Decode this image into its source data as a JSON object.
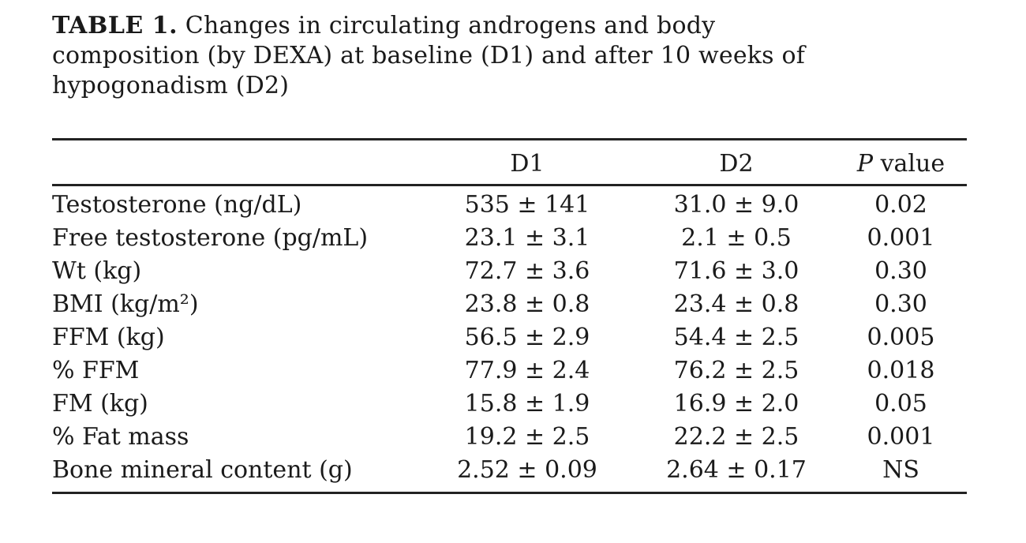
{
  "paper_table": {
    "title": {
      "label": "TABLE 1.",
      "line1": "Changes in circulating androgens and body",
      "line2": "composition (by DEXA) at baseline (D1) and after 10 weeks of",
      "line3": "hypogonadism (D2)"
    },
    "header": {
      "label_col": "",
      "d1": "D1",
      "d2": "D2",
      "p_italic": "P",
      "p_rest": " value"
    },
    "rows": [
      {
        "label": "Testosterone (ng/dL)",
        "d1": "535 ± 141",
        "d2": "31.0 ± 9.0",
        "p": "0.02"
      },
      {
        "label": "Free testosterone (pg/mL)",
        "d1": "23.1 ± 3.1",
        "d2": "2.1 ± 0.5",
        "p": "0.001"
      },
      {
        "label": "Wt (kg)",
        "d1": "72.7 ± 3.6",
        "d2": "71.6 ± 3.0",
        "p": "0.30"
      },
      {
        "label": "BMI (kg/m²)",
        "d1": "23.8 ± 0.8",
        "d2": "23.4 ± 0.8",
        "p": "0.30"
      },
      {
        "label": "FFM (kg)",
        "d1": "56.5 ± 2.9",
        "d2": "54.4 ± 2.5",
        "p": "0.005"
      },
      {
        "label": "% FFM",
        "d1": "77.9 ± 2.4",
        "d2": "76.2 ± 2.5",
        "p": "0.018"
      },
      {
        "label": "FM (kg)",
        "d1": "15.8 ± 1.9",
        "d2": "16.9 ± 2.0",
        "p": "0.05"
      },
      {
        "label": "% Fat mass",
        "d1": "19.2 ± 2.5",
        "d2": "22.2 ± 2.5",
        "p": "0.001"
      },
      {
        "label": "Bone mineral content (g)",
        "d1": "2.52 ± 0.09",
        "d2": "2.64 ± 0.17",
        "p": "NS"
      }
    ],
    "colors": {
      "background": "#ffffff",
      "text": "#1a1a1a",
      "rule": "#222222"
    }
  }
}
